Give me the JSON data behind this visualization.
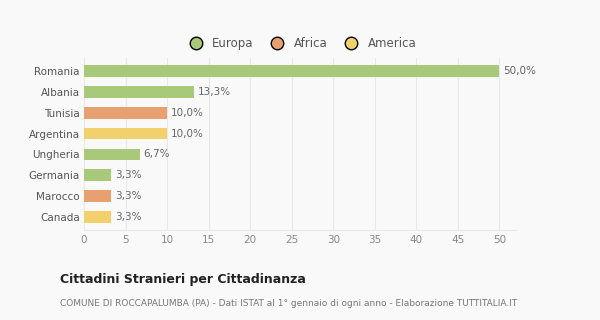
{
  "categories": [
    "Canada",
    "Marocco",
    "Germania",
    "Ungheria",
    "Argentina",
    "Tunisia",
    "Albania",
    "Romania"
  ],
  "values": [
    3.3,
    3.3,
    3.3,
    6.7,
    10.0,
    10.0,
    13.3,
    50.0
  ],
  "labels": [
    "3,3%",
    "3,3%",
    "3,3%",
    "6,7%",
    "10,0%",
    "10,0%",
    "13,3%",
    "50,0%"
  ],
  "colors": [
    "#f2d06b",
    "#e8a070",
    "#a8c87a",
    "#a8c87a",
    "#f2d06b",
    "#e8a070",
    "#a8c87a",
    "#a8c87a"
  ],
  "legend": [
    {
      "label": "Europa",
      "color": "#a8c87a"
    },
    {
      "label": "Africa",
      "color": "#e8a070"
    },
    {
      "label": "America",
      "color": "#f2d06b"
    }
  ],
  "xlim": [
    0,
    52
  ],
  "xticks": [
    0,
    5,
    10,
    15,
    20,
    25,
    30,
    35,
    40,
    45,
    50
  ],
  "title": "Cittadini Stranieri per Cittadinanza",
  "subtitle": "COMUNE DI ROCCAPALUMBA (PA) - Dati ISTAT al 1° gennaio di ogni anno - Elaborazione TUTTITALIA.IT",
  "bg_color": "#f9f9f9",
  "grid_color": "#e8e8e8",
  "label_fontsize": 7.5,
  "tick_fontsize": 7.5,
  "bar_height": 0.55
}
